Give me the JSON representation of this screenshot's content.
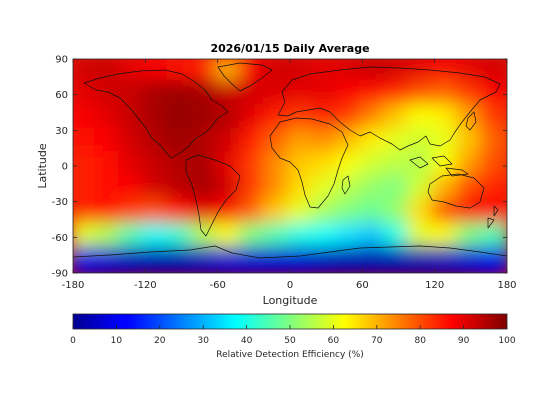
{
  "chart_data": {
    "type": "heatmap",
    "title": "2026/01/15 Daily Average",
    "xlabel": "Longitude",
    "ylabel": "Latitude",
    "xlim": [
      -180,
      180
    ],
    "ylim": [
      -90,
      90
    ],
    "xticks": [
      "-180",
      "-120",
      "-60",
      "0",
      "60",
      "120",
      "180"
    ],
    "yticks": [
      "90",
      "60",
      "30",
      "0",
      "-30",
      "-60",
      "-90"
    ],
    "colorbar": {
      "label": "Relative Detection Efficiency (%)",
      "ticks": [
        "0",
        "10",
        "20",
        "30",
        "40",
        "50",
        "60",
        "70",
        "80",
        "90",
        "100"
      ],
      "range": [
        0,
        100
      ],
      "colormap": "jet"
    },
    "grid_lon_step": 20,
    "grid_lat_step": 20,
    "grid_lon_centers": [
      -170,
      -150,
      -130,
      -110,
      -90,
      -70,
      -50,
      -30,
      -10,
      10,
      30,
      50,
      70,
      90,
      110,
      130,
      150,
      170
    ],
    "grid_lat_centers": [
      80,
      60,
      40,
      20,
      0,
      -20,
      -40,
      -60,
      -80
    ],
    "values": [
      [
        92,
        93,
        90,
        88,
        86,
        84,
        70,
        88,
        92,
        92,
        90,
        91,
        93,
        92,
        90,
        88,
        90,
        92
      ],
      [
        90,
        92,
        93,
        96,
        97,
        96,
        93,
        92,
        91,
        90,
        90,
        88,
        86,
        84,
        80,
        78,
        82,
        88
      ],
      [
        88,
        90,
        93,
        96,
        98,
        97,
        95,
        90,
        85,
        82,
        84,
        82,
        75,
        68,
        62,
        64,
        72,
        82
      ],
      [
        86,
        88,
        92,
        95,
        97,
        95,
        92,
        85,
        78,
        72,
        74,
        70,
        64,
        60,
        58,
        60,
        68,
        78
      ],
      [
        84,
        86,
        90,
        93,
        95,
        96,
        90,
        82,
        74,
        68,
        66,
        62,
        58,
        56,
        55,
        62,
        72,
        80
      ],
      [
        84,
        86,
        88,
        92,
        94,
        96,
        92,
        82,
        74,
        66,
        60,
        56,
        52,
        50,
        58,
        70,
        80,
        84
      ],
      [
        84,
        86,
        82,
        80,
        86,
        90,
        88,
        78,
        68,
        60,
        54,
        50,
        48,
        52,
        66,
        80,
        88,
        88
      ],
      [
        60,
        55,
        45,
        38,
        42,
        55,
        62,
        50,
        45,
        40,
        38,
        35,
        32,
        40,
        60,
        62,
        50,
        45
      ],
      [
        10,
        8,
        6,
        5,
        5,
        6,
        8,
        8,
        8,
        8,
        6,
        5,
        5,
        5,
        5,
        6,
        8,
        10
      ]
    ]
  },
  "colors": {
    "background": "#ffffff",
    "axis": "#262626",
    "coastline": "#111111"
  }
}
